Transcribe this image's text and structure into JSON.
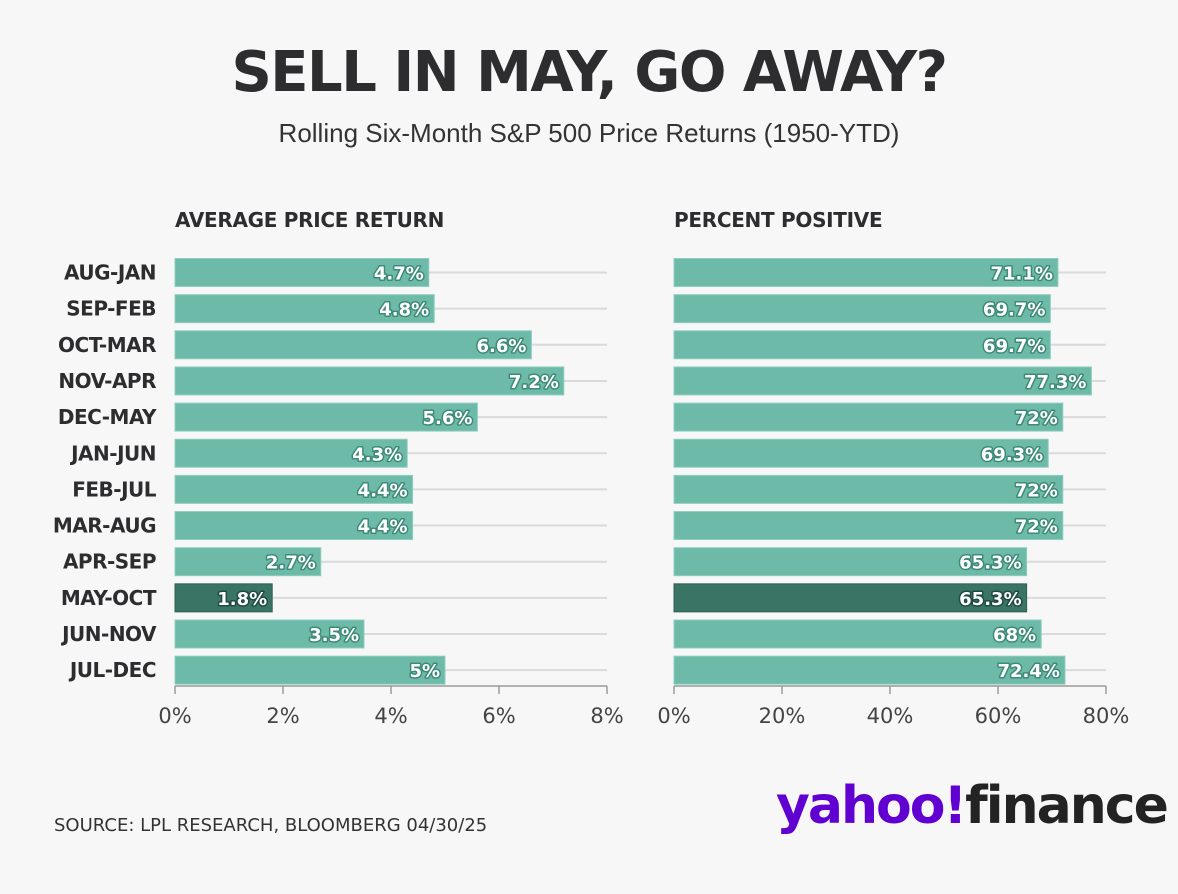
{
  "title": "SELL IN MAY, GO AWAY?",
  "subtitle": "Rolling Six-Month S&P 500 Price Returns (1950-YTD)",
  "source": "SOURCE: LPL RESEARCH, BLOOMBERG 04/30/25",
  "logo": {
    "part1": "yahoo!",
    "part2": "finance",
    "color1": "#6001d2",
    "color2": "#232323"
  },
  "colors": {
    "bar": "#6cbaa7",
    "highlight": "#3a7465",
    "grid": "#dadadd",
    "axis": "#9a9a9a",
    "label_text": "#ffffff",
    "label_stroke": "#3e8a78"
  },
  "chart_data": [
    {
      "type": "bar",
      "orientation": "horizontal",
      "title": "AVERAGE PRICE RETURN",
      "categories": [
        "AUG-JAN",
        "SEP-FEB",
        "OCT-MAR",
        "NOV-APR",
        "DEC-MAY",
        "JAN-JUN",
        "FEB-JUL",
        "MAR-AUG",
        "APR-SEP",
        "MAY-OCT",
        "JUN-NOV",
        "JUL-DEC"
      ],
      "values": [
        4.7,
        4.8,
        6.6,
        7.2,
        5.6,
        4.3,
        4.4,
        4.4,
        2.7,
        1.8,
        3.5,
        5.0
      ],
      "value_labels": [
        "4.7%",
        "4.8%",
        "6.6%",
        "7.2%",
        "5.6%",
        "4.3%",
        "4.4%",
        "4.4%",
        "2.7%",
        "1.8%",
        "3.5%",
        "5%"
      ],
      "highlight": "MAY-OCT",
      "xlim": [
        0,
        8
      ],
      "ticks": [
        0,
        2,
        4,
        6,
        8
      ],
      "tick_labels": [
        "0%",
        "2%",
        "4%",
        "6%",
        "8%"
      ],
      "grid": true
    },
    {
      "type": "bar",
      "orientation": "horizontal",
      "title": "PERCENT POSITIVE",
      "categories": [
        "AUG-JAN",
        "SEP-FEB",
        "OCT-MAR",
        "NOV-APR",
        "DEC-MAY",
        "JAN-JUN",
        "FEB-JUL",
        "MAR-AUG",
        "APR-SEP",
        "MAY-OCT",
        "JUN-NOV",
        "JUL-DEC"
      ],
      "values": [
        71.1,
        69.7,
        69.7,
        77.3,
        72,
        69.3,
        72,
        72,
        65.3,
        65.3,
        68,
        72.4
      ],
      "value_labels": [
        "71.1%",
        "69.7%",
        "69.7%",
        "77.3%",
        "72%",
        "69.3%",
        "72%",
        "72%",
        "65.3%",
        "65.3%",
        "68%",
        "72.4%"
      ],
      "highlight": "MAY-OCT",
      "xlim": [
        0,
        80
      ],
      "ticks": [
        0,
        20,
        40,
        60,
        80
      ],
      "tick_labels": [
        "0%",
        "20%",
        "40%",
        "60%",
        "80%"
      ],
      "grid": true
    }
  ]
}
